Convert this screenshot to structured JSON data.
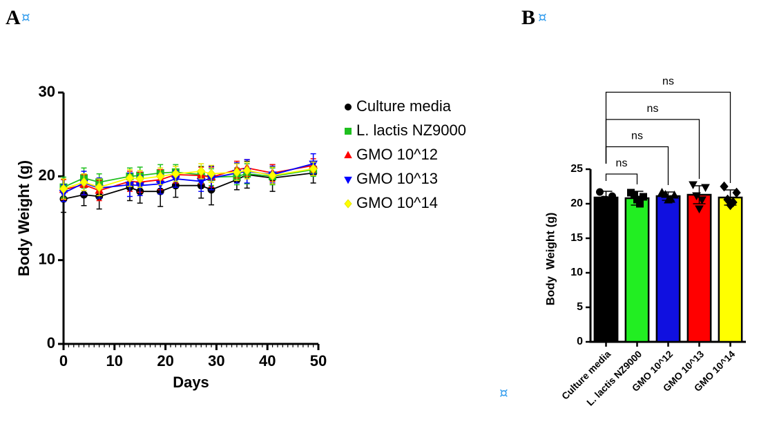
{
  "paragraph_mark": "¤",
  "chart_data": [
    {
      "type": "line",
      "panel_label": "A",
      "panel_mark": "¤",
      "x_label": "Days",
      "y_label": "Body Weight (g)",
      "x": [
        0,
        4,
        7,
        13,
        15,
        19,
        22,
        27,
        29,
        34,
        36,
        41,
        49
      ],
      "xlim": [
        0,
        50
      ],
      "xticks": [
        0,
        10,
        20,
        30,
        40,
        50
      ],
      "minor_xtick_step": 1,
      "ylim": [
        0,
        30
      ],
      "yticks": [
        0,
        10,
        20,
        30
      ],
      "series": [
        {
          "name": "Culture media",
          "color": "#000000",
          "marker": "circle",
          "values": [
            17.3,
            17.8,
            17.6,
            18.7,
            18.2,
            18.2,
            18.9,
            18.9,
            18.4,
            19.6,
            20.2,
            19.8,
            20.4
          ],
          "errors": [
            1.6,
            1.3,
            1.5,
            1.6,
            1.4,
            1.8,
            1.4,
            1.5,
            1.8,
            1.2,
            1.6,
            1.6,
            1.2
          ]
        },
        {
          "name": "L. lactis NZ9000",
          "color": "#1fbf1f",
          "marker": "square",
          "values": [
            18.7,
            19.8,
            19.3,
            20.0,
            20.1,
            20.4,
            20.5,
            20.2,
            19.9,
            20.0,
            20.3,
            20.0,
            20.8
          ],
          "errors": [
            1.2,
            1.2,
            1.0,
            1.0,
            1.0,
            1.0,
            0.9,
            1.0,
            1.0,
            1.0,
            1.2,
            1.0,
            0.8
          ]
        },
        {
          "name": "GMO 10^12",
          "color": "#ff0000",
          "marker": "triangle-up",
          "values": [
            18.4,
            19.0,
            18.3,
            19.4,
            19.3,
            19.6,
            20.2,
            20.1,
            19.9,
            20.8,
            21.0,
            20.4,
            21.3
          ],
          "errors": [
            1.2,
            1.2,
            1.2,
            1.2,
            1.2,
            1.2,
            1.0,
            1.0,
            1.2,
            1.0,
            1.0,
            1.0,
            0.8
          ]
        },
        {
          "name": "GMO 10^13",
          "color": "#0000ff",
          "marker": "triangle-down",
          "values": [
            18.0,
            19.2,
            18.6,
            19.0,
            18.9,
            19.1,
            19.7,
            19.4,
            19.8,
            20.4,
            20.6,
            20.2,
            21.5
          ],
          "errors": [
            1.0,
            1.4,
            1.2,
            1.4,
            1.2,
            1.2,
            1.0,
            1.2,
            1.4,
            1.2,
            1.4,
            1.0,
            1.2
          ]
        },
        {
          "name": "GMO 10^14",
          "color": "#ffff00",
          "marker": "diamond",
          "values": [
            18.5,
            19.3,
            18.7,
            19.8,
            19.7,
            20.0,
            20.3,
            20.6,
            20.3,
            20.5,
            20.7,
            20.1,
            20.9
          ],
          "errors": [
            1.2,
            1.0,
            1.0,
            1.0,
            1.0,
            1.0,
            0.9,
            0.9,
            1.0,
            1.0,
            1.0,
            1.0,
            0.8
          ]
        }
      ]
    },
    {
      "type": "bar",
      "panel_label": "B",
      "panel_mark": "¤",
      "y_label": "Body  Weight (g)",
      "categories": [
        "Culture media",
        "L. lactis NZ9000",
        "GMO 10^12",
        "GMO 10^13",
        "GMO 10^14"
      ],
      "colors": [
        "#000000",
        "#22ee22",
        "#1010e0",
        "#ff0000",
        "#ffff00"
      ],
      "markers": [
        "circle",
        "square",
        "triangle-up",
        "triangle-down",
        "diamond"
      ],
      "values": [
        20.9,
        20.8,
        21.1,
        21.3,
        20.9
      ],
      "errors": [
        0.9,
        1.0,
        0.6,
        1.3,
        1.1
      ],
      "points": [
        [
          21.7,
          21.1,
          20.6,
          20.5,
          20.6
        ],
        [
          21.6,
          21.0,
          21.3,
          20.0,
          20.6
        ],
        [
          21.6,
          21.2,
          21.3,
          20.6,
          20.5
        ],
        [
          22.8,
          22.4,
          21.2,
          20.6,
          19.3
        ],
        [
          22.5,
          21.6,
          20.6,
          20.2,
          19.8
        ]
      ],
      "ylim": [
        0,
        25
      ],
      "yticks": [
        0,
        5,
        10,
        15,
        20,
        25
      ],
      "comparisons": [
        {
          "pair": [
            0,
            1
          ],
          "label": "ns"
        },
        {
          "pair": [
            0,
            2
          ],
          "label": "ns"
        },
        {
          "pair": [
            0,
            3
          ],
          "label": "ns"
        },
        {
          "pair": [
            0,
            4
          ],
          "label": "ns"
        }
      ]
    }
  ]
}
